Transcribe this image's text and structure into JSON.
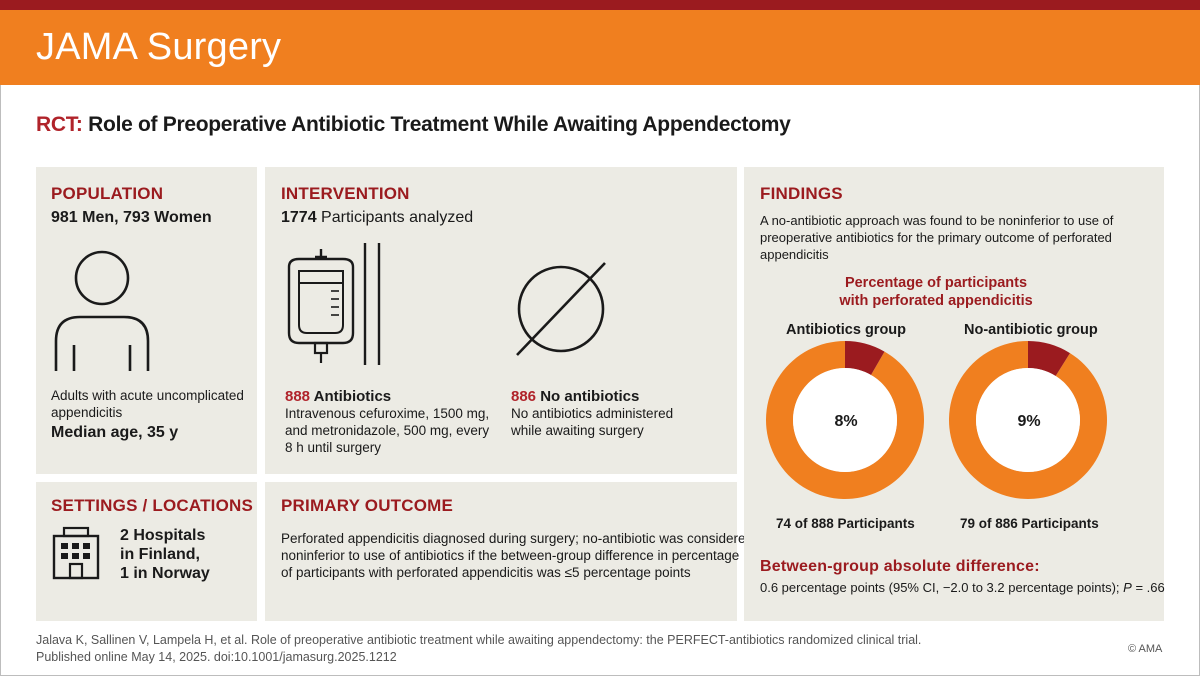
{
  "header": {
    "brand": "JAMA Surgery"
  },
  "title": {
    "prefix": "RCT:",
    "text": "Role of Preoperative Antibiotic Treatment While Awaiting Appendectomy"
  },
  "population": {
    "heading": "POPULATION",
    "subhead": "981 Men, 793 Women",
    "desc_line1": "Adults with acute uncomplicated",
    "desc_line2": "appendicitis",
    "median": "Median age, 35 y",
    "icon": "person-icon"
  },
  "intervention": {
    "heading": "INTERVENTION",
    "count": "1774",
    "count_suffix": " Participants analyzed",
    "arm1": {
      "n": "888",
      "label": " Antibiotics",
      "line1": "Intravenous cefuroxime, 1500 mg,",
      "line2": "and metronidazole, 500 mg, every",
      "line3": "8 h until surgery",
      "icon": "iv-bag-icon"
    },
    "arm2": {
      "n": "886",
      "label": " No antibiotics",
      "line1": "No antibiotics administered",
      "line2": "while awaiting surgery",
      "icon": "empty-set-icon"
    }
  },
  "settings": {
    "heading": "SETTINGS / LOCATIONS",
    "line1": "2 Hospitals",
    "line2": "in Finland,",
    "line3": "1 in Norway",
    "icon": "hospital-building-icon"
  },
  "outcome": {
    "heading": "PRIMARY OUTCOME",
    "line1": "Perforated appendicitis diagnosed during surgery; no-antibiotic was considered",
    "line2": "noninferior to use of antibiotics if the between-group difference in percentage",
    "line3": "of participants with perforated appendicitis was ≤5 percentage points"
  },
  "findings": {
    "heading": "FINDINGS",
    "line1": "A no-antibiotic approach was found to be noninferior to use of",
    "line2": "preoperative antibiotics for the primary outcome of perforated",
    "line3": "appendicitis",
    "chart_title1": "Percentage of participants",
    "chart_title2": "with perforated appendicitis",
    "diff_heading": "Between-group absolute difference:",
    "diff_text": "0.6 percentage points (95% CI, −2.0 to 3.2 percentage points); ",
    "diff_p": "P",
    "diff_p_value": " = .66"
  },
  "chart_data": {
    "type": "pie",
    "title": "Percentage of participants with perforated appendicitis",
    "series": [
      {
        "name": "Antibiotics group",
        "percent_label": "8%",
        "perforated": 74,
        "total": 888,
        "caption": "74 of 888 Participants"
      },
      {
        "name": "No-antibiotic group",
        "percent_label": "9%",
        "perforated": 79,
        "total": 886,
        "caption": "79 of 886 Participants"
      }
    ],
    "colors": {
      "perforated": "#9b1b1f",
      "other": "#f07f1f"
    }
  },
  "citation": {
    "line1": "Jalava K, Sallinen V, Lampela H, et al. Role of preoperative antibiotic treatment while awaiting appendectomy: the PERFECT-antibiotics randomized clinical trial.",
    "line2": "Published online May 14, 2025. doi:10.1001/jamasurg.2025.1212",
    "copyright": "© AMA"
  },
  "colors": {
    "brand_orange": "#f07f1f",
    "brand_red": "#9b1b1f",
    "panel_bg": "#ecebe4"
  }
}
